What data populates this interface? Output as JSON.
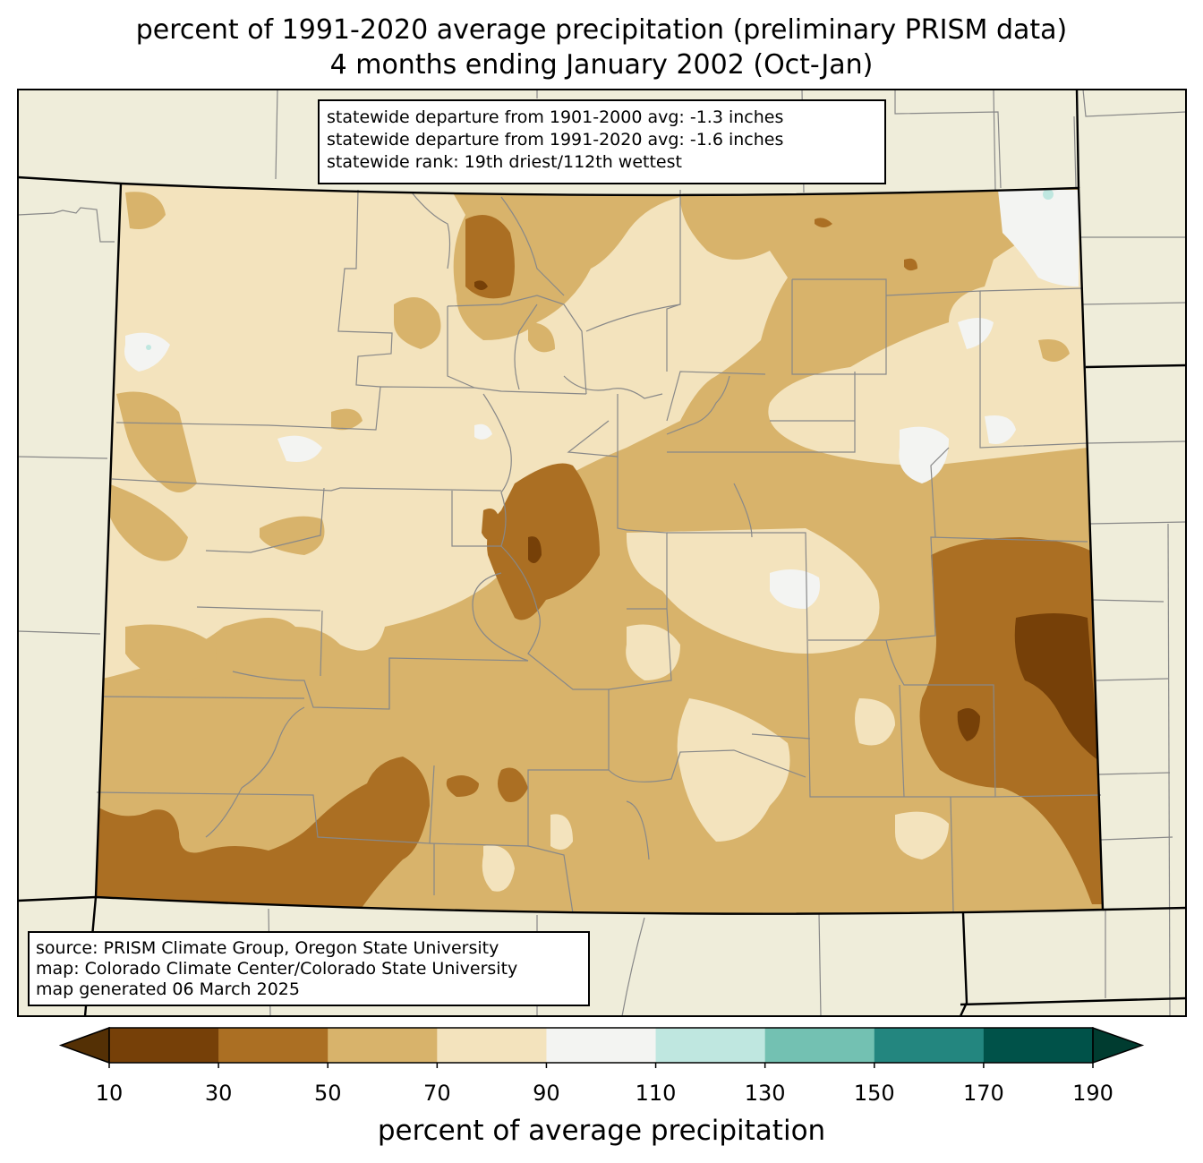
{
  "title": {
    "line1": "percent of 1991-2020 average precipitation (preliminary PRISM data)",
    "line2": "4 months ending January 2002 (Oct-Jan)"
  },
  "stats": {
    "dep_1901_2000": "statewide departure from 1901-2000 avg: -1.3 inches",
    "dep_1991_2020": "statewide departure from 1991-2020 avg: -1.6 inches",
    "rank": "statewide rank: 19th driest/112th wettest"
  },
  "source": {
    "line1": "source: PRISM Climate Group, Oregon State University",
    "line2": "map: Colorado Climate Center/Colorado State University",
    "line3": "map generated 06 March 2025"
  },
  "colorbar": {
    "label": "percent of average precipitation",
    "ticks": [
      "10",
      "30",
      "50",
      "70",
      "90",
      "110",
      "130",
      "150",
      "170",
      "190"
    ],
    "colors": {
      "under": "#543005",
      "c10_30": "#764008",
      "c30_50": "#ab6f23",
      "c50_70": "#d8b36b",
      "c70_90": "#f3e3bd",
      "c90_110": "#f3f4f2",
      "c110_130": "#bfe7e0",
      "c130_150": "#73c1b2",
      "c150_170": "#23867f",
      "c170_190": "#005249",
      "over": "#003c30"
    }
  },
  "map_colors": {
    "background": "#efedda",
    "county_line": "#888888",
    "state_line": "#000000"
  }
}
